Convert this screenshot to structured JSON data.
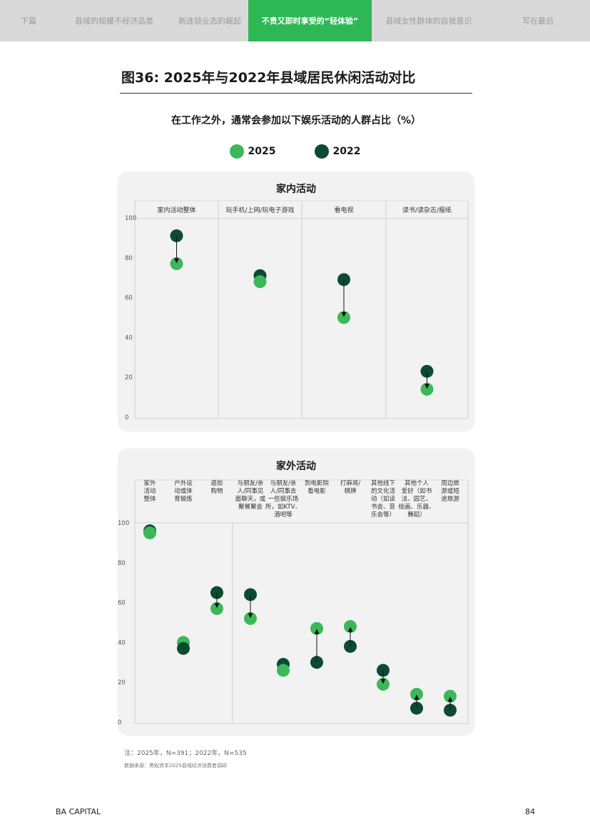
{
  "nav": {
    "tabs": [
      {
        "label": "下篇",
        "active": false
      },
      {
        "label": "县域的规模不经济品类",
        "active": false
      },
      {
        "label": "新连锁业态的崛起",
        "active": false
      },
      {
        "label": "不贵又即时享受的“轻体验”",
        "active": true
      },
      {
        "label": "县域女性群体的自我意识",
        "active": false
      },
      {
        "label": "写在最后",
        "active": false
      }
    ]
  },
  "figure": {
    "title": "图36: 2025年与2022年县域居民休闲活动对比",
    "subtitle": "在工作之外，通常会参加以下娱乐活动的人群占比（%）"
  },
  "legend": [
    {
      "label": "2025",
      "color": "#3cb85a"
    },
    {
      "label": "2022",
      "color": "#0d4a33"
    }
  ],
  "colors": {
    "c2025": "#3cb85a",
    "c2022": "#0d4a33",
    "accent": "#2db855"
  },
  "chart_data": [
    {
      "type": "dumbbell",
      "title": "家内活动",
      "ylim": [
        0,
        100
      ],
      "yticks": [
        0,
        20,
        40,
        60,
        80,
        100
      ],
      "categories": [
        "家内活动整体",
        "玩手机/上网/玩电子游戏",
        "看电视",
        "读书/读杂志/报纸"
      ],
      "series": [
        {
          "name": "2025",
          "values": [
            77,
            68,
            50,
            14
          ]
        },
        {
          "name": "2022",
          "values": [
            91,
            71,
            69,
            23
          ]
        }
      ]
    },
    {
      "type": "dumbbell",
      "title": "家外活动",
      "ylim": [
        0,
        100
      ],
      "yticks": [
        0,
        20,
        40,
        60,
        80,
        100
      ],
      "categories": [
        "家外活动整体",
        "户外运动或体育锻炼",
        "逛街购物",
        "与朋友/亲人/同事见面聊天，或聚餐聚会",
        "与朋友/亲人/同事去一些娱乐场所，如KTV、酒吧等",
        "到电影院看电影",
        "打麻将/棋牌",
        "其他线下的文化活动（如读书会、音乐会等）",
        "其他个人爱好（如书法、园艺、绘画、乐器、舞蹈）",
        "周边旅游或短途旅游"
      ],
      "category_lines": [
        [
          "家外",
          "活动",
          "整体"
        ],
        [
          "户外运",
          "动或体",
          "育锻炼"
        ],
        [
          "逛街",
          "购物"
        ],
        [
          "与朋友/亲",
          "人/同事见",
          "面聊天，或",
          "聚餐聚会"
        ],
        [
          "与朋友/亲",
          "人/同事去",
          "一些娱乐场",
          "所，如KTV、",
          "酒吧等"
        ],
        [
          "到电影院",
          "看电影"
        ],
        [
          "打麻将/",
          "棋牌"
        ],
        [
          "其他线下",
          "的文化活",
          "动（如读",
          "书会、音",
          "乐会等）"
        ],
        [
          "其他个人",
          "爱好（如书",
          "法、园艺、",
          "绘画、乐器、",
          "舞蹈）"
        ],
        [
          "周边旅",
          "游或短",
          "途旅游"
        ]
      ],
      "series": [
        {
          "name": "2025",
          "values": [
            95,
            40,
            57,
            52,
            26,
            47,
            48,
            19,
            14,
            13
          ]
        },
        {
          "name": "2022",
          "values": [
            96,
            37,
            65,
            64,
            29,
            30,
            38,
            26,
            7,
            6
          ]
        }
      ]
    }
  ],
  "notes": {
    "sample": "注：2025年，N=391；2022年，N=535",
    "source": "数据来源：黑蚁资本2025县域经济消费者调研"
  },
  "footer": {
    "brand": "BA CAPITAL",
    "page": "84"
  }
}
